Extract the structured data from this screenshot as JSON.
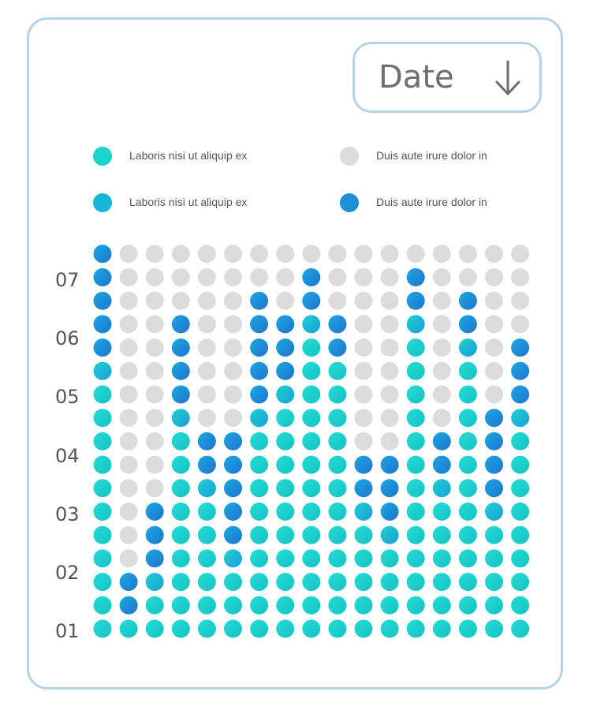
{
  "colors": {
    "turquoise": "#1ad3cb",
    "blue": "#1f8fd8",
    "empty": "#dcdcdc",
    "border": "#b4d3e6"
  },
  "sort_button": {
    "label": "Date",
    "icon": "arrow-down-icon"
  },
  "legend": [
    {
      "label": "Laboris nisi ut aliquip ex",
      "color": "#1ad3cb"
    },
    {
      "label": "Duis aute irure dolor in",
      "color": "#dcdcdc"
    },
    {
      "label": "Laboris nisi ut aliquip ex",
      "color": "#18b6d6"
    },
    {
      "label": "Duis aute irure dolor in",
      "color": "#1f8fd8"
    }
  ],
  "chart_data": {
    "type": "dot-matrix",
    "rows_per_column": 17,
    "legend_placement": "top",
    "y_tick_labels": [
      "01",
      "02",
      "03",
      "04",
      "05",
      "06",
      "07"
    ],
    "columns": [
      {
        "turquoise": 11,
        "blue": 6
      },
      {
        "turquoise": 1,
        "blue": 2
      },
      {
        "turquoise": 2,
        "blue": 4
      },
      {
        "turquoise": 9,
        "blue": 5
      },
      {
        "turquoise": 6,
        "blue": 3
      },
      {
        "turquoise": 3,
        "blue": 6
      },
      {
        "turquoise": 9,
        "blue": 6
      },
      {
        "turquoise": 10,
        "blue": 4
      },
      {
        "turquoise": 13,
        "blue": 3
      },
      {
        "turquoise": 12,
        "blue": 2
      },
      {
        "turquoise": 5,
        "blue": 3
      },
      {
        "turquoise": 4,
        "blue": 4
      },
      {
        "turquoise": 13,
        "blue": 3
      },
      {
        "turquoise": 6,
        "blue": 3
      },
      {
        "turquoise": 12,
        "blue": 3
      },
      {
        "turquoise": 5,
        "blue": 5
      },
      {
        "turquoise": 9,
        "blue": 4
      }
    ]
  }
}
